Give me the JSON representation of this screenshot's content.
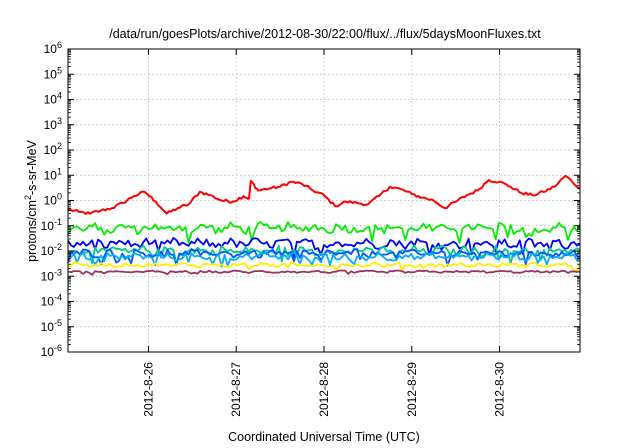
{
  "chart_data": {
    "type": "line",
    "title": "/data/run/goesPlots/archive/2012-08-30/22:00/flux/../flux/5daysMoonFluxes.txt",
    "xlabel": "Coordinated Universal Time (UTC)",
    "ylabel_parts": {
      "main": "protons/cm",
      "sup": "2",
      "rest": "-s-sr-MeV"
    },
    "y_scale": "log",
    "ylim": [
      1e-06,
      1000000.0
    ],
    "y_ticks": [
      {
        "base": "10",
        "exp": "-6",
        "value": 1e-06
      },
      {
        "base": "10",
        "exp": "-5",
        "value": 1e-05
      },
      {
        "base": "10",
        "exp": "-4",
        "value": 0.0001
      },
      {
        "base": "10",
        "exp": "-3",
        "value": 0.001
      },
      {
        "base": "10",
        "exp": "-2",
        "value": 0.01
      },
      {
        "base": "10",
        "exp": "-1",
        "value": 0.1
      },
      {
        "base": "10",
        "exp": "0",
        "value": 1
      },
      {
        "base": "10",
        "exp": "1",
        "value": 10
      },
      {
        "base": "10",
        "exp": "2",
        "value": 100
      },
      {
        "base": "10",
        "exp": "3",
        "value": 1000
      },
      {
        "base": "10",
        "exp": "4",
        "value": 10000
      },
      {
        "base": "10",
        "exp": "5",
        "value": 100000
      },
      {
        "base": "10",
        "exp": "6",
        "value": 1000000
      }
    ],
    "xlim": [
      "2012-08-25 02:00",
      "2012-08-30 22:00"
    ],
    "x_ticks": [
      {
        "label": "2012-8-26",
        "value": "2012-08-26 00:00"
      },
      {
        "label": "2012-8-27",
        "value": "2012-08-27 00:00"
      },
      {
        "label": "2012-8-28",
        "value": "2012-08-28 00:00"
      },
      {
        "label": "2012-8-29",
        "value": "2012-08-29 00:00"
      },
      {
        "label": "2012-8-30",
        "value": "2012-08-30 00:00"
      }
    ],
    "grid": true,
    "series": [
      {
        "color": "#ff0000",
        "x": [
          "2012-08-25 02:00",
          "2012-08-25 05:00",
          "2012-08-25 08:00",
          "2012-08-25 11:00",
          "2012-08-25 14:00",
          "2012-08-25 17:00",
          "2012-08-25 20:00",
          "2012-08-25 23:00",
          "2012-08-26 02:00",
          "2012-08-26 05:00",
          "2012-08-26 08:00",
          "2012-08-26 11:00",
          "2012-08-26 14:00",
          "2012-08-26 17:00",
          "2012-08-26 20:00",
          "2012-08-26 23:00",
          "2012-08-27 02:00",
          "2012-08-27 03:30",
          "2012-08-27 04:00",
          "2012-08-27 06:00",
          "2012-08-27 09:00",
          "2012-08-27 12:00",
          "2012-08-27 15:00",
          "2012-08-27 18:00",
          "2012-08-27 21:00",
          "2012-08-28 00:00",
          "2012-08-28 03:00",
          "2012-08-28 06:00",
          "2012-08-28 09:00",
          "2012-08-28 12:00",
          "2012-08-28 15:00",
          "2012-08-28 18:00",
          "2012-08-28 21:00",
          "2012-08-29 00:00",
          "2012-08-29 03:00",
          "2012-08-29 06:00",
          "2012-08-29 09:00",
          "2012-08-29 12:00",
          "2012-08-29 15:00",
          "2012-08-29 18:00",
          "2012-08-29 21:00",
          "2012-08-30 00:00",
          "2012-08-30 03:00",
          "2012-08-30 06:00",
          "2012-08-30 09:00",
          "2012-08-30 12:00",
          "2012-08-30 15:00",
          "2012-08-30 18:00",
          "2012-08-30 22:00"
        ],
        "y": [
          0.45,
          0.35,
          0.3,
          0.4,
          0.5,
          0.8,
          1.5,
          2.2,
          0.9,
          0.3,
          0.5,
          0.7,
          2.2,
          1.6,
          1.0,
          0.9,
          1.5,
          1.2,
          6.0,
          2.5,
          3.0,
          3.5,
          5.5,
          4.5,
          2.5,
          1.6,
          0.6,
          0.9,
          0.8,
          0.7,
          1.5,
          3.5,
          2.8,
          1.8,
          1.3,
          1.0,
          0.5,
          0.9,
          1.6,
          2.5,
          6.5,
          5.5,
          3.5,
          2.0,
          1.6,
          2.2,
          3.5,
          9.5,
          3.0
        ]
      },
      {
        "color": "#00ee00",
        "mean": 0.08,
        "spread": 1.9
      },
      {
        "color": "#0000ff",
        "mean": 0.02,
        "spread": 1.8
      },
      {
        "color": "#00cc88",
        "mean": 0.01,
        "spread": 1.8
      },
      {
        "color": "#0055ff",
        "mean": 0.008,
        "spread": 1.6
      },
      {
        "color": "#00aaff",
        "mean": 0.006,
        "spread": 1.6
      },
      {
        "color": "#ffee00",
        "mean": 0.0028,
        "spread": 1.3
      },
      {
        "color": "#993366",
        "mean": 0.0015,
        "spread": 1.15
      }
    ]
  }
}
